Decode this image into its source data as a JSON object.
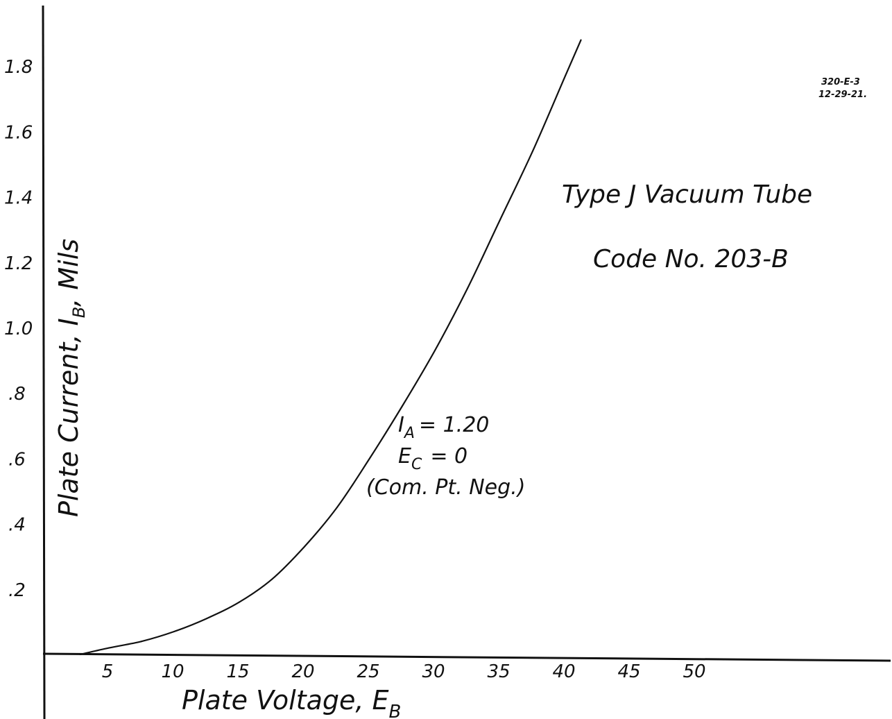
{
  "chart_data": {
    "type": "line",
    "title": "Type J Vacuum Tube",
    "subtitle": "Code No. 203-B",
    "xlabel": "Plate Voltage, E",
    "xlabel_sub": "B",
    "ylabel": "Plate Current, I",
    "ylabel_sub": "B",
    "ylabel_unit": ", Mils",
    "xlim": [
      0,
      55
    ],
    "ylim": [
      0,
      2.0
    ],
    "x_ticks": [
      5,
      10,
      15,
      20,
      25,
      30,
      35,
      40,
      45,
      50
    ],
    "x_tick_labels": [
      "5",
      "10",
      "15",
      "20",
      "25",
      "30",
      "35",
      "40",
      "45",
      "50"
    ],
    "y_ticks": [
      0.2,
      0.4,
      0.6,
      0.8,
      1.0,
      1.2,
      1.4,
      1.6,
      1.8
    ],
    "y_tick_labels": [
      ".2",
      ".4",
      ".6",
      ".8",
      "1.0",
      "1.2",
      "1.4",
      "1.6",
      "1.8"
    ],
    "grid": false,
    "series": [
      {
        "name": "",
        "x": [
          2.8,
          5,
          7.5,
          10,
          12.5,
          15,
          17.5,
          20,
          22.5,
          25,
          27.5,
          30,
          32.5,
          35,
          37.5,
          40,
          41.2
        ],
        "y": [
          0.0,
          0.02,
          0.04,
          0.07,
          0.11,
          0.16,
          0.23,
          0.33,
          0.45,
          0.6,
          0.76,
          0.93,
          1.12,
          1.33,
          1.54,
          1.77,
          1.88
        ]
      }
    ],
    "annotations": {
      "ia_label": "I",
      "ia_sub": "A",
      "ia_value": "= 1.20",
      "ec_label": "E",
      "ec_sub": "C",
      "ec_value": "= 0",
      "note": "(Com. Pt. Neg.)"
    },
    "stamp": [
      "320-E-3",
      "12-29-21."
    ]
  }
}
